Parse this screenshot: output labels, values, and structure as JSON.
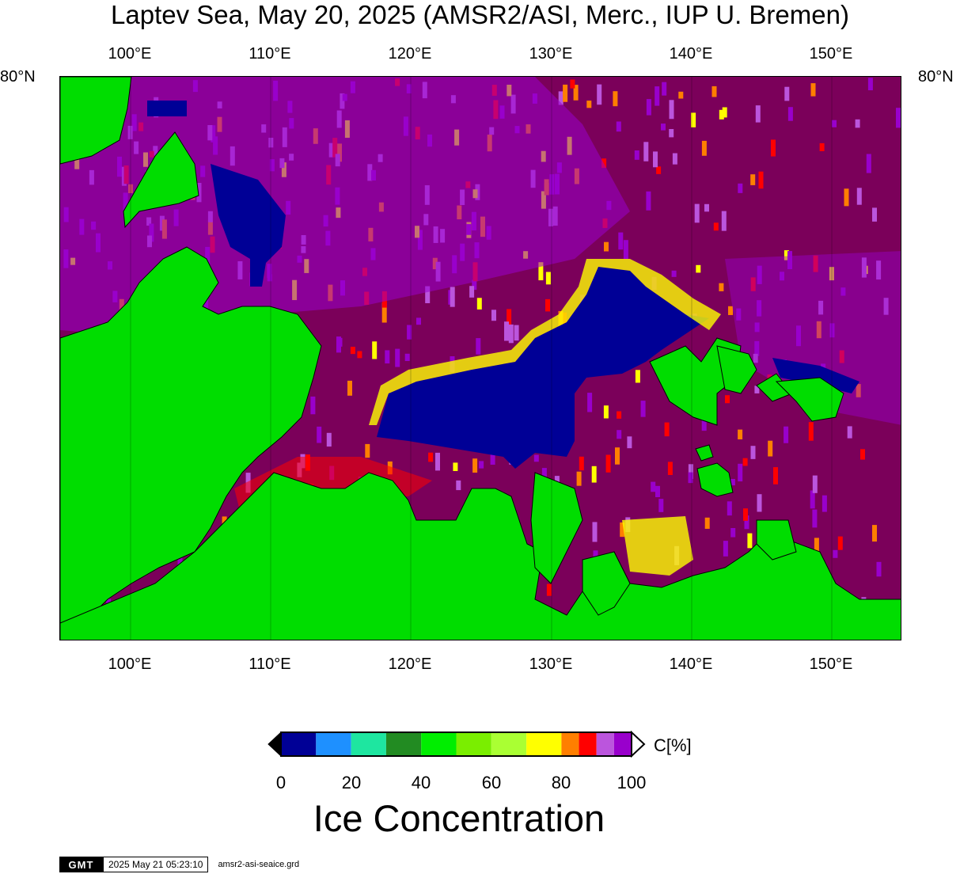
{
  "title": "Laptev Sea, May 20, 2025 (AMSR2/ASI, Merc., IUP U. Bremen)",
  "map": {
    "lon_range": [
      95,
      155
    ],
    "lon_ticks": [
      "100°E",
      "110°E",
      "120°E",
      "130°E",
      "140°E",
      "150°E"
    ],
    "lon_tick_values": [
      100,
      110,
      120,
      130,
      140,
      150
    ],
    "lat_label": "80°N",
    "colors": {
      "land": "#00dd00",
      "open_water": "#000096",
      "high_ice": "#7b005a"
    }
  },
  "colorbar": {
    "unit": "C[%]",
    "title": "Ice Concentration",
    "ticks": [
      "0",
      "20",
      "40",
      "60",
      "80",
      "100"
    ],
    "colors": [
      "#000096",
      "#1e90ff",
      "#1ee6a0",
      "#228b22",
      "#00ee00",
      "#7aee00",
      "#aaff33",
      "#ffff00",
      "#ff7f00",
      "#ff0000",
      "#bb55dd",
      "#9900cc"
    ]
  },
  "footer": {
    "logo": "GMT",
    "timestamp": "2025 May 21 05:23:10",
    "file": "amsr2-asi-seaice.grd"
  }
}
